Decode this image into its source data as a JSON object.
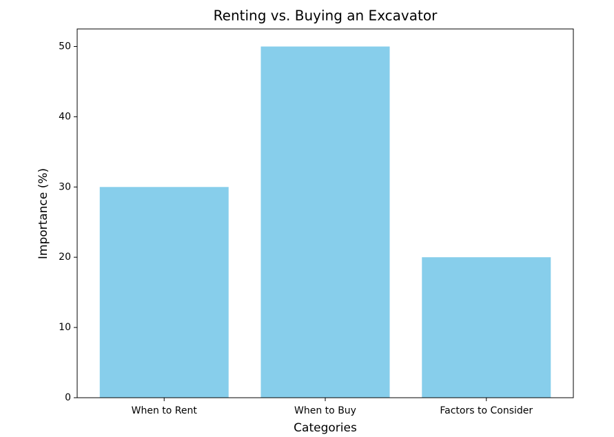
{
  "chart_data": {
    "type": "bar",
    "title": "Renting vs. Buying an Excavator",
    "x_label": "Categories",
    "y_label": "Importance (%)",
    "categories": [
      "When to Rent",
      "When to Buy",
      "Factors to Consider"
    ],
    "values": [
      30,
      50,
      20
    ],
    "color": "#87ceeb",
    "ylim": [
      0,
      52.5
    ],
    "yticks": [
      0,
      10,
      20,
      30,
      40,
      50
    ],
    "grid": false
  }
}
